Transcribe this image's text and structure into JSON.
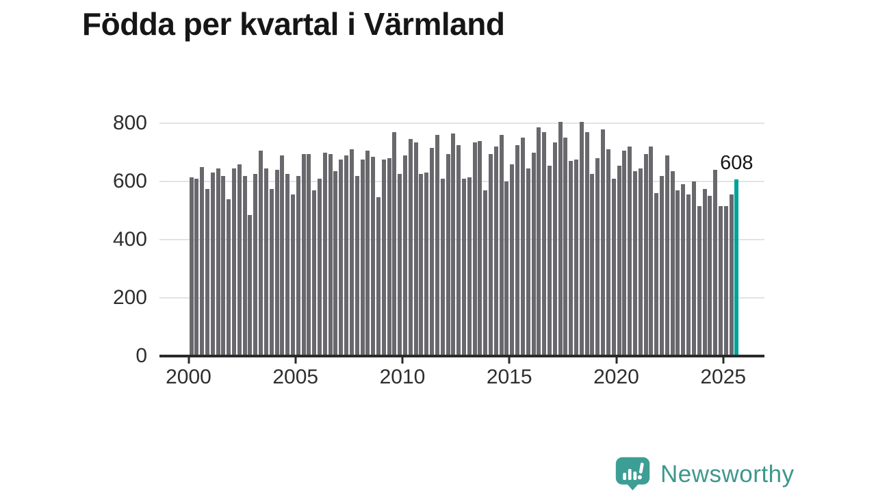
{
  "title": "Födda per kvartal i Värmland",
  "chart_data": {
    "type": "bar",
    "title": "Födda per kvartal i Värmland",
    "x_start": "2000 Q1",
    "x_end": "2025 Q3",
    "frequency": "quarterly",
    "values": [
      615,
      610,
      650,
      575,
      630,
      645,
      620,
      540,
      645,
      660,
      620,
      485,
      625,
      705,
      645,
      575,
      640,
      690,
      625,
      555,
      620,
      695,
      695,
      570,
      610,
      700,
      695,
      635,
      675,
      690,
      710,
      620,
      675,
      705,
      685,
      545,
      675,
      680,
      770,
      625,
      690,
      745,
      735,
      625,
      630,
      715,
      760,
      610,
      695,
      765,
      725,
      610,
      615,
      735,
      740,
      570,
      695,
      720,
      760,
      600,
      660,
      725,
      750,
      645,
      700,
      785,
      770,
      655,
      735,
      805,
      750,
      670,
      675,
      805,
      770,
      625,
      680,
      780,
      710,
      610,
      655,
      705,
      720,
      635,
      645,
      695,
      720,
      560,
      620,
      690,
      635,
      570,
      590,
      555,
      600,
      515,
      575,
      550,
      640,
      515,
      515,
      555,
      608
    ],
    "highlight": {
      "index": 102,
      "label": "608",
      "color": "#00a39a"
    },
    "bar_color": "#68686d",
    "yticks": [
      0,
      200,
      400,
      600,
      800
    ],
    "ylim": [
      0,
      830
    ],
    "xticks": [
      "2000",
      "2005",
      "2010",
      "2015",
      "2020",
      "2025"
    ],
    "grid": "horizontal",
    "legend": "none"
  },
  "annotation": {
    "value_label": "608"
  },
  "branding": {
    "name": "Newsworthy",
    "logo_icon": "bar-chart-speech-bubble-icon",
    "text_color": "#3d978d",
    "icon_color": "#3c9e94"
  }
}
